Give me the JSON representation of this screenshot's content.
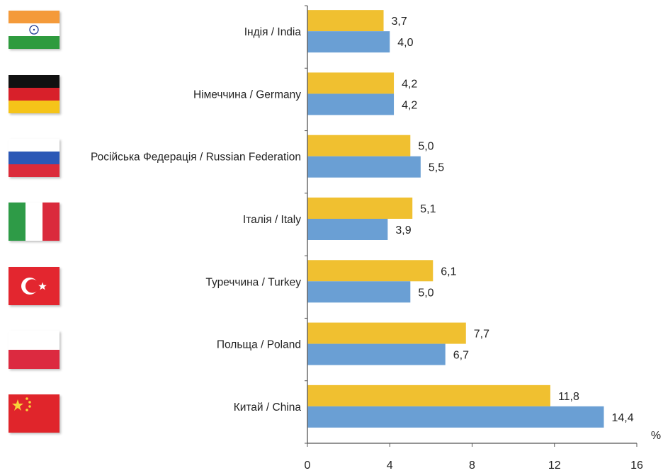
{
  "chart_data": {
    "type": "bar",
    "orientation": "horizontal",
    "unit_label": "%",
    "categories": [
      "Індія / India",
      "Німеччина / Germany",
      "Російська Федерація / Russian Federation",
      "Італія / Italy",
      "Туреччина / Turkey",
      "Польща / Poland",
      "Китай / China"
    ],
    "series": [
      {
        "color": "#F0C030",
        "values": [
          3.7,
          4.2,
          5.0,
          5.1,
          6.1,
          7.7,
          11.8
        ],
        "labels": [
          "3,7",
          "4,2",
          "5,0",
          "5,1",
          "6,1",
          "7,7",
          "11,8"
        ]
      },
      {
        "color": "#6A9FD4",
        "values": [
          4.0,
          4.2,
          5.5,
          3.9,
          5.0,
          6.7,
          14.4
        ],
        "labels": [
          "4,0",
          "4,2",
          "5,5",
          "3,9",
          "5,0",
          "6,7",
          "14,4"
        ]
      }
    ],
    "xlim": [
      0,
      16
    ],
    "xticks": [
      0,
      4,
      8,
      12,
      16
    ],
    "grid": false,
    "legend": "none"
  },
  "flags": [
    "india-flag-icon",
    "germany-flag-icon",
    "russia-flag-icon",
    "italy-flag-icon",
    "turkey-flag-icon",
    "poland-flag-icon",
    "china-flag-icon"
  ]
}
